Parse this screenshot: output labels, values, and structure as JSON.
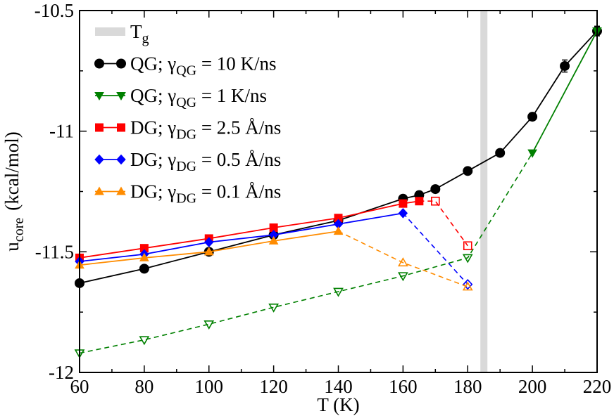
{
  "chart_data": {
    "type": "line",
    "xlabel": "T (K)",
    "ylabel": {
      "main": "u",
      "sub": "core",
      "rest": "(kcal/mol)"
    },
    "xlim": [
      60,
      220
    ],
    "ylim": [
      -12,
      -10.5
    ],
    "x_ticks": [
      60,
      80,
      100,
      120,
      140,
      160,
      180,
      200,
      220
    ],
    "x_tick_labels": [
      "60",
      "80",
      "100",
      "120",
      "140",
      "160",
      "180",
      "200",
      "220"
    ],
    "y_ticks": [
      -12,
      -11.5,
      -11,
      -10.5
    ],
    "y_tick_labels": [
      "-12",
      "-11.5",
      "-11",
      "-10.5"
    ],
    "tg": {
      "x": 185,
      "label_main": "T",
      "label_sub": "g",
      "color": "#d9d9d9"
    },
    "legend_position": "top-left",
    "series": [
      {
        "name": "QG; γQG = 10 K/ns",
        "legend": {
          "pre": "QG;  γ",
          "sub": "QG",
          "post": " = 10 K/ns"
        },
        "color": "#000000",
        "marker": "circle",
        "solid": [
          [
            60,
            -11.63
          ],
          [
            80,
            -11.57
          ],
          [
            100,
            -11.5
          ],
          [
            120,
            -11.43
          ],
          [
            140,
            -11.37
          ],
          [
            160,
            -11.28
          ],
          [
            165,
            -11.265
          ],
          [
            170,
            -11.24
          ],
          [
            180,
            -11.165
          ],
          [
            190,
            -11.09
          ],
          [
            200,
            -10.94
          ],
          [
            210,
            -10.73
          ],
          [
            220,
            -10.585
          ]
        ],
        "errorbars": [
          [
            200,
            0.015
          ],
          [
            210,
            0.025
          ],
          [
            220,
            0.02
          ]
        ],
        "dashed": [],
        "open_points": [],
        "open_marker": "circle"
      },
      {
        "name": "QG; γQG = 1 K/ns",
        "legend": {
          "pre": "QG;  γ",
          "sub": "QG",
          "post": " = 1 K/ns"
        },
        "color": "#008000",
        "marker": "triangle-down",
        "solid": [
          [
            200,
            -11.09
          ],
          [
            220,
            -10.585
          ]
        ],
        "errorbars": [],
        "dashed": [
          [
            60,
            -11.92
          ],
          [
            80,
            -11.865
          ],
          [
            100,
            -11.8
          ],
          [
            120,
            -11.73
          ],
          [
            140,
            -11.665
          ],
          [
            160,
            -11.6
          ],
          [
            180,
            -11.525
          ],
          [
            200,
            -11.09
          ]
        ],
        "open_points": [
          [
            60,
            -11.92
          ],
          [
            80,
            -11.865
          ],
          [
            100,
            -11.8
          ],
          [
            120,
            -11.73
          ],
          [
            140,
            -11.665
          ],
          [
            160,
            -11.6
          ],
          [
            180,
            -11.525
          ]
        ],
        "open_marker": "triangle-down"
      },
      {
        "name": "DG; γDG = 2.5 Å/ns",
        "legend": {
          "pre": "DG;  γ",
          "sub": "DG",
          "post": " = 2.5 Å/ns"
        },
        "color": "#ff0000",
        "marker": "square",
        "solid": [
          [
            60,
            -11.525
          ],
          [
            80,
            -11.485
          ],
          [
            100,
            -11.445
          ],
          [
            120,
            -11.4
          ],
          [
            140,
            -11.36
          ],
          [
            160,
            -11.3
          ],
          [
            165,
            -11.29
          ]
        ],
        "errorbars": [],
        "dashed": [
          [
            165,
            -11.29
          ],
          [
            170,
            -11.29
          ],
          [
            180,
            -11.475
          ]
        ],
        "open_points": [
          [
            170,
            -11.29
          ],
          [
            180,
            -11.475
          ]
        ],
        "open_marker": "square"
      },
      {
        "name": "DG; γDG = 0.5 Å/ns",
        "legend": {
          "pre": "DG;  γ",
          "sub": "DG",
          "post": " = 0.5 Å/ns"
        },
        "color": "#0000ff",
        "marker": "diamond",
        "solid": [
          [
            60,
            -11.54
          ],
          [
            80,
            -11.51
          ],
          [
            100,
            -11.46
          ],
          [
            120,
            -11.43
          ],
          [
            140,
            -11.385
          ],
          [
            160,
            -11.34
          ]
        ],
        "errorbars": [],
        "dashed": [
          [
            160,
            -11.34
          ],
          [
            180,
            -11.635
          ]
        ],
        "open_points": [
          [
            180,
            -11.635
          ]
        ],
        "open_marker": "diamond"
      },
      {
        "name": "DG; γDG = 0.1 Å/ns",
        "legend": {
          "pre": "DG;  γ",
          "sub": "DG",
          "post": " = 0.1 Å/ns"
        },
        "color": "#ff8c00",
        "marker": "triangle-up",
        "solid": [
          [
            60,
            -11.555
          ],
          [
            80,
            -11.525
          ],
          [
            100,
            -11.5
          ],
          [
            120,
            -11.455
          ],
          [
            140,
            -11.415
          ]
        ],
        "errorbars": [],
        "dashed": [
          [
            140,
            -11.415
          ],
          [
            160,
            -11.545
          ],
          [
            180,
            -11.645
          ]
        ],
        "open_points": [
          [
            160,
            -11.545
          ],
          [
            180,
            -11.645
          ]
        ],
        "open_marker": "triangle-up"
      }
    ]
  }
}
